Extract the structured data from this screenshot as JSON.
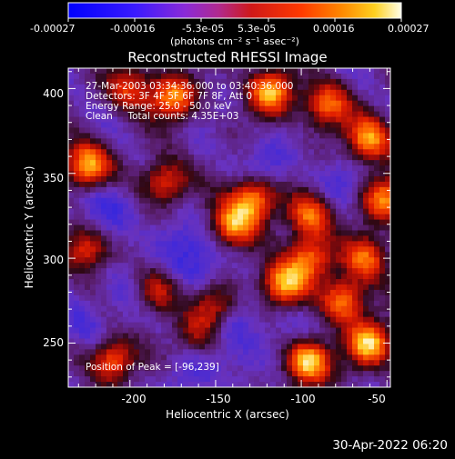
{
  "colorbar": {
    "ticks": [
      "-0.00027",
      "-0.00016",
      "-5.3e-05",
      "5.3e-05",
      "0.00016",
      "0.00027"
    ],
    "units_label": "(photons cm⁻² s⁻¹ asec⁻²)"
  },
  "title": "Reconstructed RHESSI Image",
  "annotation": {
    "line1": "27-Mar-2003 03:34:36.000 to 03:40:36.000",
    "line2": "Detectors: 3F 4F 5F 6F 7F 8F, Att 0",
    "line3": "Energy Range: 25.0 - 50.0 keV",
    "line4": "Clean     Total counts: 4.35E+03",
    "peak": "Position of Peak = [-96,239]"
  },
  "axes": {
    "xlabel": "Heliocentric X (arcsec)",
    "ylabel": "Heliocentric Y (arcsec)",
    "xticks": [
      "-200",
      "-150",
      "-100",
      "-50"
    ],
    "yticks": [
      "400",
      "350",
      "300",
      "250"
    ]
  },
  "timestamp": "30-Apr-2022 06:20",
  "chart_data": {
    "type": "heatmap",
    "title": "Reconstructed RHESSI Image",
    "xlabel": "Heliocentric X (arcsec)",
    "ylabel": "Heliocentric Y (arcsec)",
    "xlim": [
      -236,
      -48
    ],
    "ylim": [
      224,
      412
    ],
    "color_range": [
      -0.00027,
      0.00027
    ],
    "peak": [
      -96,
      239
    ],
    "hotspots": [
      {
        "x": -96,
        "y": 239,
        "w": 1.0
      },
      {
        "x": -60,
        "y": 250,
        "w": 0.9
      },
      {
        "x": -225,
        "y": 355,
        "w": 0.85
      },
      {
        "x": -175,
        "y": 395,
        "w": 0.75
      },
      {
        "x": -118,
        "y": 398,
        "w": 0.85
      },
      {
        "x": -85,
        "y": 390,
        "w": 0.7
      },
      {
        "x": -60,
        "y": 370,
        "w": 0.8
      },
      {
        "x": -52,
        "y": 335,
        "w": 0.7
      },
      {
        "x": -140,
        "y": 320,
        "w": 0.75
      },
      {
        "x": -128,
        "y": 335,
        "w": 0.8
      },
      {
        "x": -95,
        "y": 325,
        "w": 0.7
      },
      {
        "x": -110,
        "y": 285,
        "w": 0.85
      },
      {
        "x": -95,
        "y": 300,
        "w": 0.7
      },
      {
        "x": -62,
        "y": 300,
        "w": 0.65
      },
      {
        "x": -180,
        "y": 345,
        "w": 0.6
      },
      {
        "x": -210,
        "y": 240,
        "w": 0.7
      },
      {
        "x": -185,
        "y": 280,
        "w": 0.55
      },
      {
        "x": -225,
        "y": 305,
        "w": 0.55
      },
      {
        "x": -150,
        "y": 270,
        "w": 0.5
      },
      {
        "x": -160,
        "y": 255,
        "w": 0.4
      },
      {
        "x": -75,
        "y": 275,
        "w": 0.75
      },
      {
        "x": -200,
        "y": 400,
        "w": 0.55
      }
    ],
    "coldspots": [
      {
        "x": -215,
        "y": 330,
        "w": 0.8
      },
      {
        "x": -175,
        "y": 310,
        "w": 0.7
      },
      {
        "x": -145,
        "y": 260,
        "w": 0.8
      },
      {
        "x": -160,
        "y": 295,
        "w": 0.6
      },
      {
        "x": -120,
        "y": 355,
        "w": 0.6
      },
      {
        "x": -80,
        "y": 345,
        "w": 0.5
      },
      {
        "x": -200,
        "y": 280,
        "w": 0.6
      },
      {
        "x": -130,
        "y": 240,
        "w": 0.5
      },
      {
        "x": -170,
        "y": 230,
        "w": 0.5
      },
      {
        "x": -225,
        "y": 260,
        "w": 0.5
      },
      {
        "x": -105,
        "y": 260,
        "w": 0.4
      }
    ]
  }
}
